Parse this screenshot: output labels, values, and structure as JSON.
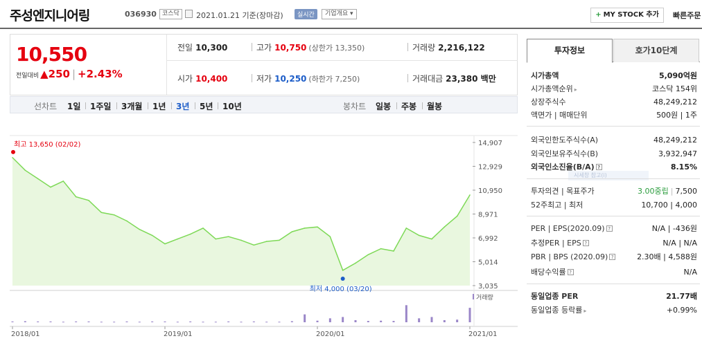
{
  "header": {
    "company": "주성엔지니어링",
    "code": "036930",
    "market": "코스닥",
    "date_info": "2021.01.21 기준(장마감)",
    "realtime": "실시간",
    "overview": "기업개요",
    "mystock": "MY STOCK 추가",
    "quick_order": "빠른주문"
  },
  "price": {
    "current": "10,550",
    "change_label": "전일대비",
    "change": "250",
    "change_pct": "+2.43%",
    "prev_close_label": "전일",
    "prev_close": "10,300",
    "high_label": "고가",
    "high": "10,750",
    "upper_limit": "(상한가 13,350)",
    "volume_label": "거래량",
    "volume": "2,216,122",
    "open_label": "시가",
    "open": "10,400",
    "low_label": "저가",
    "low": "10,250",
    "lower_limit": "(하한가 7,250)",
    "amount_label": "거래대금",
    "amount": "23,380 백만"
  },
  "tabs": {
    "line_chart": "선차트",
    "periods": [
      "1일",
      "1주일",
      "3개월",
      "1년",
      "3년",
      "5년",
      "10년"
    ],
    "active_period": "3년",
    "candle_chart": "봉차트",
    "candles": [
      "일봉",
      "주봉",
      "월봉"
    ]
  },
  "chart_data": {
    "type": "area",
    "xlabel": "",
    "ylabel": "",
    "y_ticks": [
      "14,907",
      "12,929",
      "10,950",
      "8,971",
      "6,992",
      "5,014",
      "3,035"
    ],
    "ylim": [
      3035,
      14907
    ],
    "x_ticks": [
      "2018/01",
      "2019/01",
      "2020/01",
      "2021/01"
    ],
    "max_annotation": "최고 13,650 (02/02)",
    "min_annotation": "최저 4,000 (03/20)",
    "volume_label": "거래량",
    "series": [
      {
        "x": [
          "2018/01",
          "2018/02",
          "2018/03",
          "2018/04",
          "2018/05",
          "2018/06",
          "2018/07",
          "2018/08",
          "2018/09",
          "2018/10",
          "2018/11",
          "2018/12",
          "2019/01",
          "2019/02",
          "2019/03",
          "2019/04",
          "2019/05",
          "2019/06",
          "2019/07",
          "2019/08",
          "2019/09",
          "2019/10",
          "2019/11",
          "2019/12",
          "2020/01",
          "2020/02",
          "2020/03",
          "2020/04",
          "2020/05",
          "2020/06",
          "2020/07",
          "2020/08",
          "2020/09",
          "2020/10",
          "2020/11",
          "2020/12",
          "2021/01"
        ],
        "values": [
          13650,
          12600,
          11900,
          11200,
          11700,
          10400,
          10100,
          9100,
          8900,
          8400,
          7700,
          7200,
          6500,
          6900,
          7300,
          7800,
          6900,
          7100,
          6800,
          6400,
          6700,
          6800,
          7500,
          7800,
          7900,
          7100,
          4300,
          4900,
          5600,
          6100,
          5900,
          7800,
          7200,
          6900,
          7900,
          8800,
          10550
        ]
      }
    ],
    "volume": [
      0.03,
      0.04,
      0.03,
      0.03,
      0.02,
      0.03,
      0.03,
      0.02,
      0.02,
      0.03,
      0.02,
      0.03,
      0.03,
      0.02,
      0.03,
      0.02,
      0.02,
      0.03,
      0.02,
      0.03,
      0.02,
      0.02,
      0.04,
      0.3,
      0.06,
      0.15,
      0.2,
      0.08,
      0.05,
      0.06,
      0.05,
      0.65,
      0.15,
      0.2,
      0.08,
      0.1,
      0.55
    ]
  },
  "panel": {
    "tab_active": "투자정보",
    "tab_other": "호가10단계",
    "rows1": [
      {
        "k": "시가총액",
        "v": "5,090억원",
        "bold": true
      },
      {
        "k": "시가총액순위",
        "v": "코스닥 154위"
      },
      {
        "k": "상장주식수",
        "v": "48,249,212"
      },
      {
        "k": "액면가 | 매매단위",
        "v": "500원 | 1주"
      }
    ],
    "rows2": [
      {
        "k": "외국인한도주식수(A)",
        "v": "48,249,212"
      },
      {
        "k": "외국인보유주식수(B)",
        "v": "3,932,947"
      },
      {
        "k": "외국인소진율(B/A)",
        "v": "8.15%",
        "bold": true
      }
    ],
    "tooltip": "시세창 참고(i)",
    "opinion_label": "투자의견 | 목표주가",
    "opinion_value": "3.00중립",
    "target_price": "7,500",
    "week52_label": "52주최고 | 최저",
    "week52_value": "10,700 | 4,000",
    "rows4": [
      {
        "k": "PER | EPS(2020.09)",
        "v": "N/A | -436원"
      },
      {
        "k": "추정PER | EPS",
        "v": "N/A | N/A"
      },
      {
        "k": "PBR | BPS (2020.09)",
        "v": "2.30배 | 4,588원"
      },
      {
        "k": "배당수익률",
        "v": "N/A"
      }
    ],
    "industry_per_label": "동일업종 PER",
    "industry_per": "21.77배",
    "industry_rate_label": "동일업종 등락률",
    "industry_rate": "+0.99%"
  },
  "colors": {
    "up": "#e5000f",
    "down": "#1d5dc8",
    "line": "#7ed957",
    "fill": "#e9f7df",
    "volume": "#9a86c8"
  }
}
